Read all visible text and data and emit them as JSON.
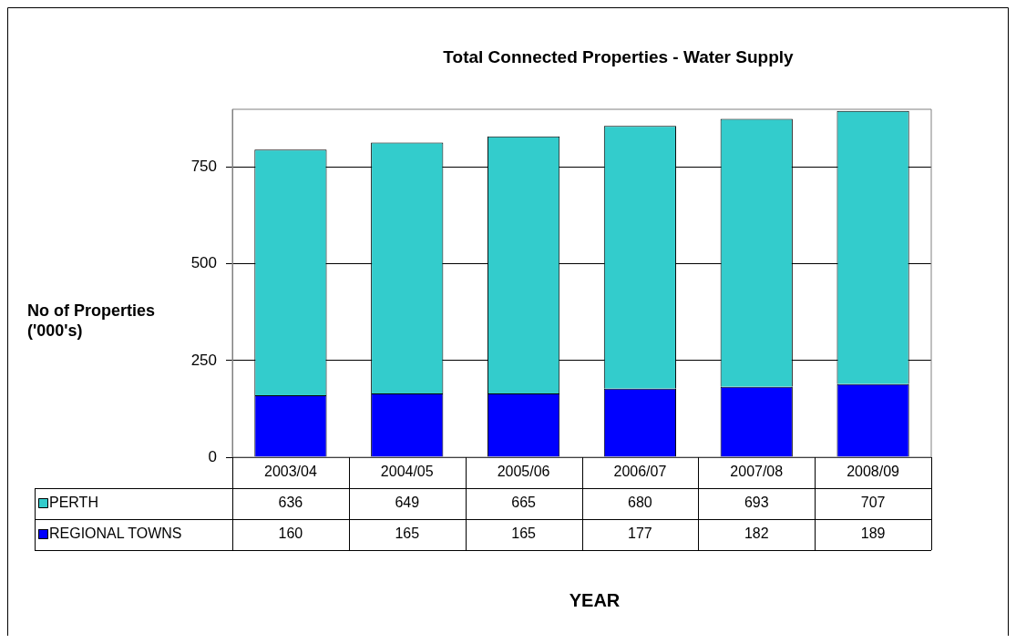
{
  "chart_data": {
    "type": "bar",
    "title": "Total Connected Properties - Water Supply",
    "annotations": [
      "YEAR"
    ],
    "ylabel": "No of Properties\n('000's)",
    "categories": [
      "2003/04",
      "2004/05",
      "2005/06",
      "2006/07",
      "2007/08",
      "2008/09"
    ],
    "stacked": true,
    "series": [
      {
        "name": "REGIONAL TOWNS",
        "color": "#0000ff",
        "values": [
          160,
          165,
          165,
          177,
          182,
          189
        ]
      },
      {
        "name": "PERTH",
        "color": "#33cccc",
        "values": [
          636,
          649,
          665,
          680,
          693,
          707
        ]
      }
    ],
    "ylim": [
      0,
      900
    ],
    "yticks": [
      0,
      250,
      500,
      750
    ],
    "grid": "y",
    "legend": "bottom",
    "data_labels": true
  }
}
